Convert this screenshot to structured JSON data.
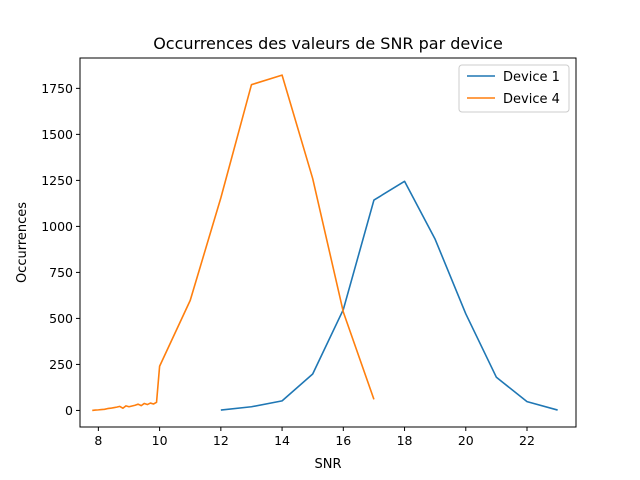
{
  "chart_data": {
    "type": "line",
    "title": "Occurrences des valeurs de SNR par device",
    "xlabel": "SNR",
    "ylabel": "Occurrences",
    "xlim": [
      7.4,
      23.6
    ],
    "ylim": [
      -90,
      1915
    ],
    "xticks": [
      8,
      10,
      12,
      14,
      16,
      18,
      20,
      22
    ],
    "yticks": [
      0,
      250,
      500,
      750,
      1000,
      1250,
      1500,
      1750
    ],
    "grid": false,
    "legend_position": "top-right",
    "series": [
      {
        "name": "Device 1",
        "color": "#1f77b4",
        "x": [
          12,
          13,
          14,
          15,
          16,
          17,
          18,
          19,
          20,
          21,
          22,
          23
        ],
        "y": [
          2,
          20,
          52,
          198,
          548,
          1143,
          1245,
          930,
          525,
          180,
          48,
          2
        ]
      },
      {
        "name": "Device 4",
        "color": "#ff7f0e",
        "x": [
          7.8,
          7.9,
          8.0,
          8.1,
          8.2,
          8.3,
          8.4,
          8.5,
          8.6,
          8.7,
          8.8,
          8.9,
          9.0,
          9.1,
          9.2,
          9.3,
          9.4,
          9.5,
          9.6,
          9.7,
          9.8,
          9.9,
          10,
          11,
          12,
          13,
          14,
          15,
          16,
          17
        ],
        "y": [
          0,
          2,
          3,
          5,
          6,
          10,
          12,
          15,
          18,
          22,
          12,
          25,
          20,
          24,
          28,
          34,
          26,
          38,
          32,
          40,
          35,
          44,
          240,
          598,
          1155,
          1770,
          1822,
          1260,
          535,
          60
        ]
      }
    ]
  }
}
